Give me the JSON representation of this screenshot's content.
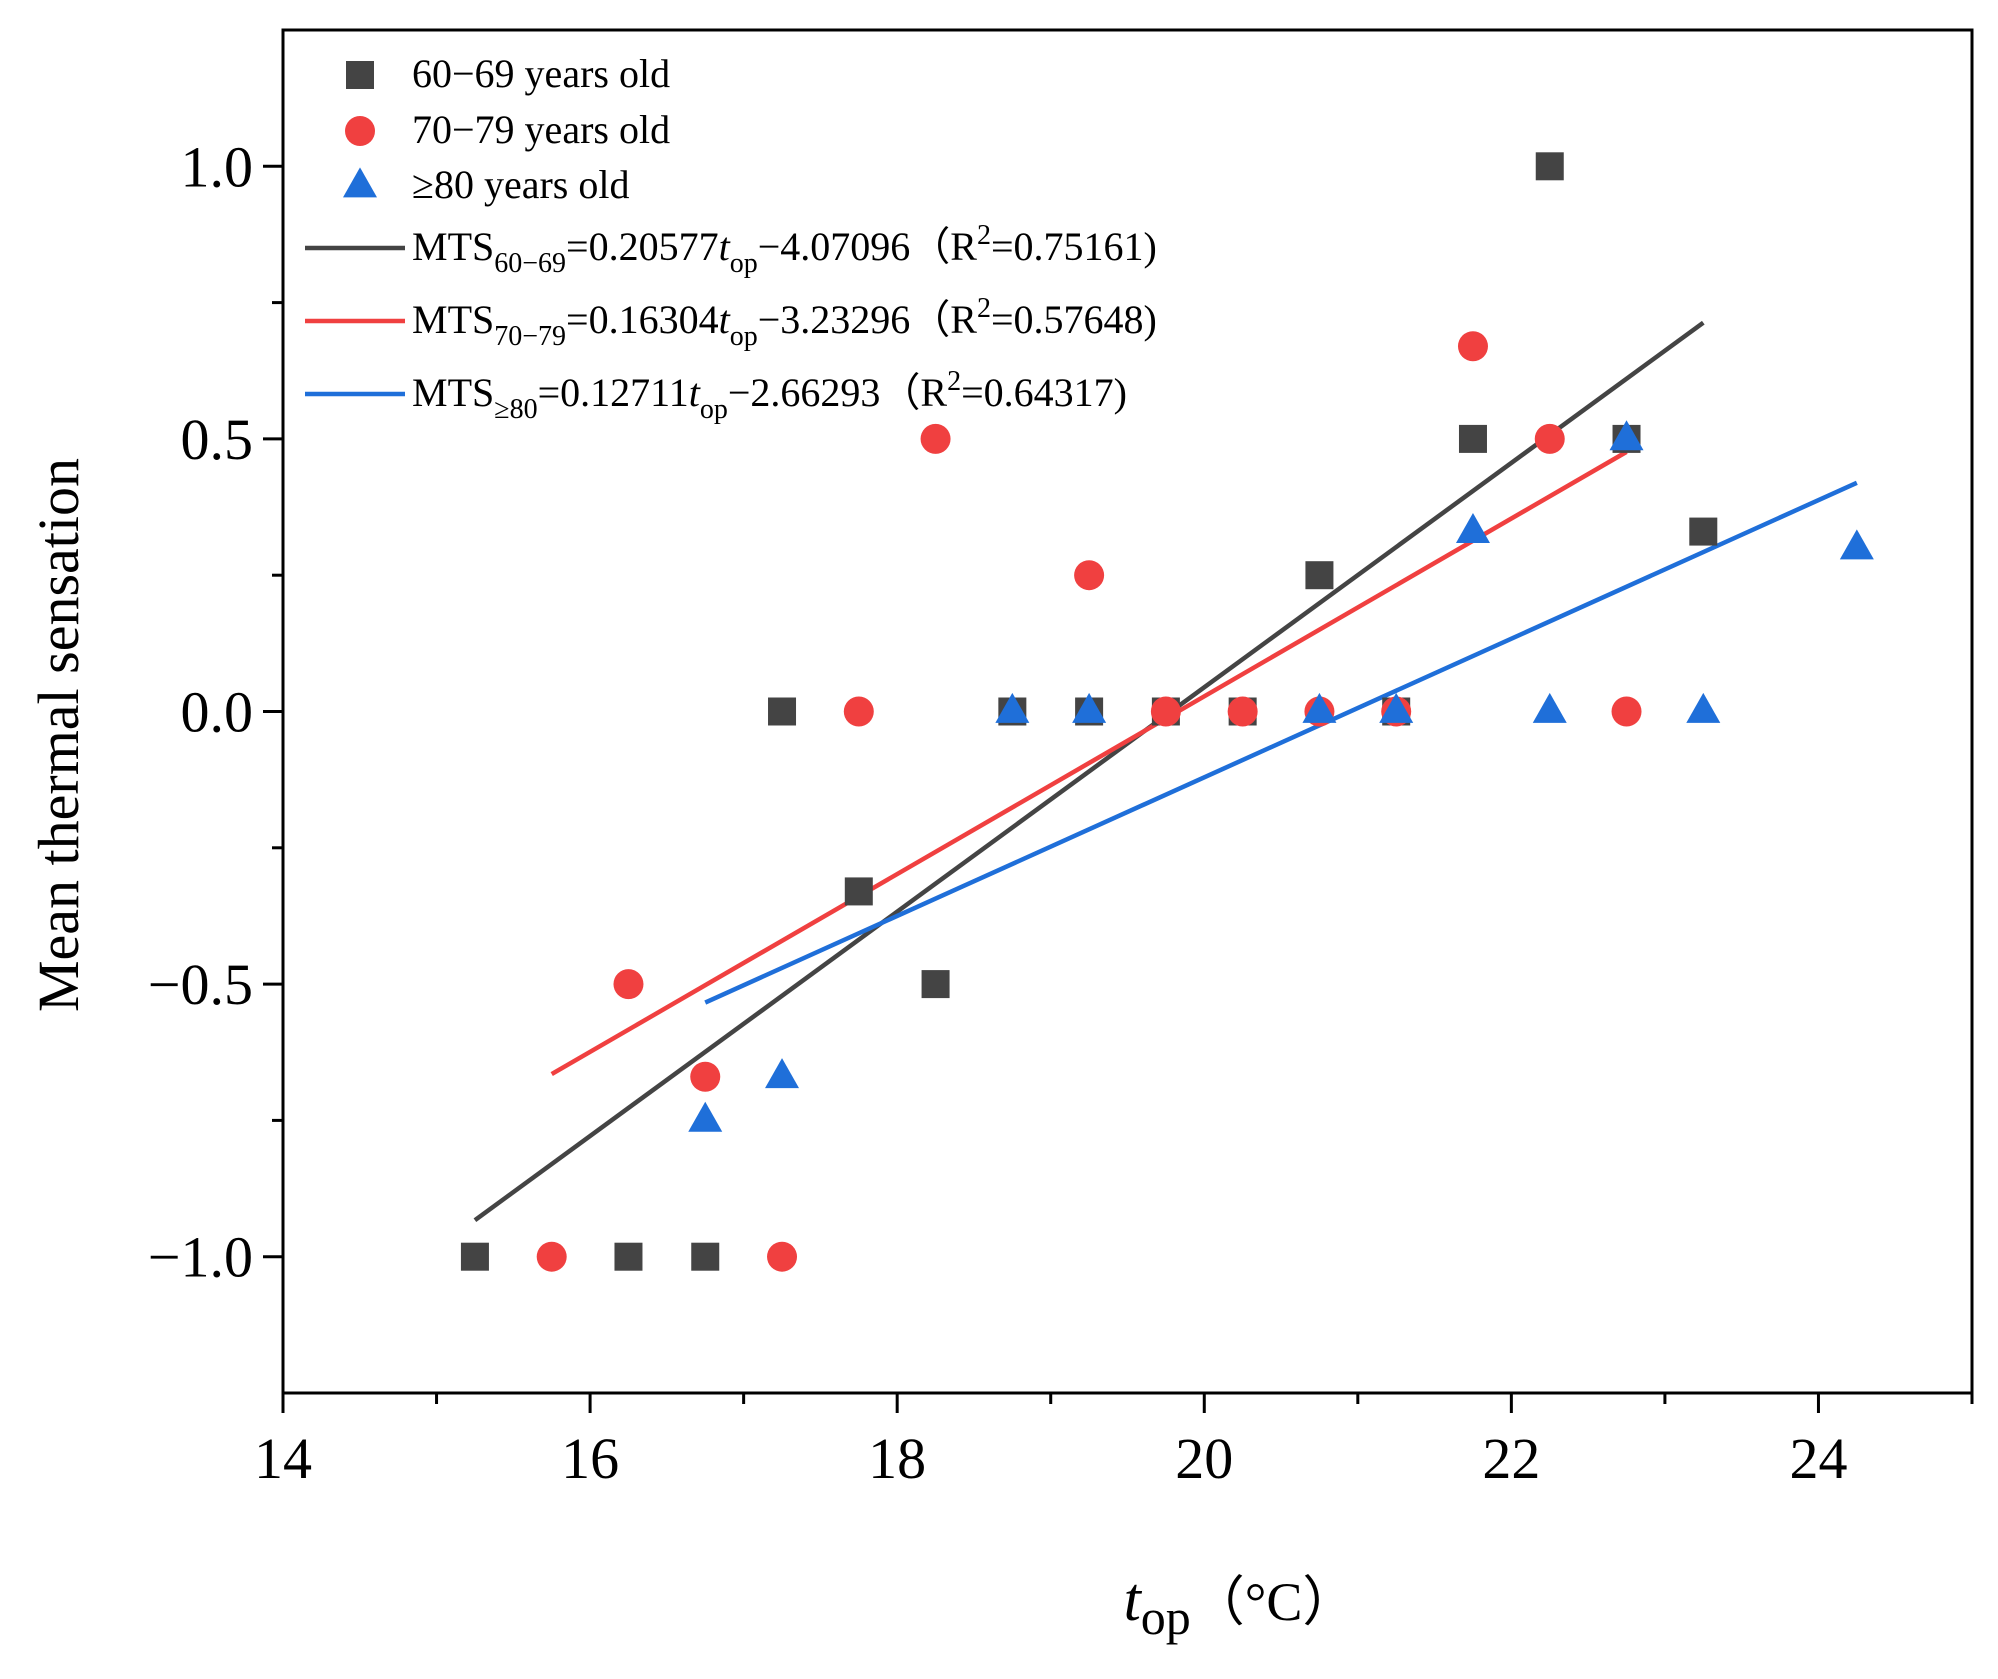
{
  "chart_data": {
    "type": "scatter",
    "title": "",
    "xlabel": {
      "main": "t",
      "sub": "op",
      "unit": "（°C）"
    },
    "ylabel": "Mean thermal sensation",
    "xlim": [
      14,
      25
    ],
    "ylim": [
      -1.25,
      1.25
    ],
    "xticks": [
      14,
      16,
      18,
      20,
      22,
      24
    ],
    "xtick_labels": [
      "14",
      "16",
      "18",
      "20",
      "22",
      "24"
    ],
    "yticks": [
      -1.0,
      -0.5,
      0.0,
      0.5,
      1.0
    ],
    "ytick_labels": [
      "−1.0",
      "−0.5",
      "0.0",
      "0.5",
      "1.0"
    ],
    "series": [
      {
        "name": "60−69 years old",
        "marker": "square",
        "color": "#444444",
        "points": [
          [
            15.25,
            -1.0
          ],
          [
            16.25,
            -1.0
          ],
          [
            16.75,
            -1.0
          ],
          [
            17.25,
            0.0
          ],
          [
            17.75,
            -0.33
          ],
          [
            18.25,
            -0.5
          ],
          [
            18.75,
            0.0
          ],
          [
            19.25,
            0.0
          ],
          [
            19.75,
            0.0
          ],
          [
            20.25,
            0.0
          ],
          [
            20.75,
            0.25
          ],
          [
            21.25,
            0.0
          ],
          [
            21.75,
            0.5
          ],
          [
            22.25,
            1.0
          ],
          [
            22.75,
            0.5
          ],
          [
            23.25,
            0.33
          ]
        ]
      },
      {
        "name": "70−79 years old",
        "marker": "circle",
        "color": "#f04040",
        "points": [
          [
            15.75,
            -1.0
          ],
          [
            16.25,
            -0.5
          ],
          [
            16.75,
            -0.67
          ],
          [
            17.25,
            -1.0
          ],
          [
            17.75,
            0.0
          ],
          [
            18.25,
            0.5
          ],
          [
            19.25,
            0.25
          ],
          [
            19.75,
            0.0
          ],
          [
            20.25,
            0.0
          ],
          [
            20.75,
            0.0
          ],
          [
            21.25,
            0.0
          ],
          [
            21.75,
            0.67
          ],
          [
            22.25,
            0.5
          ],
          [
            22.75,
            0.0
          ]
        ]
      },
      {
        "name": "≥80 years old",
        "marker": "triangle",
        "color": "#1f6fd9",
        "points": [
          [
            16.75,
            -0.75
          ],
          [
            17.25,
            -0.67
          ],
          [
            18.75,
            0.0
          ],
          [
            19.25,
            0.0
          ],
          [
            20.75,
            0.0
          ],
          [
            21.25,
            0.0
          ],
          [
            21.75,
            0.33
          ],
          [
            22.25,
            0.0
          ],
          [
            22.75,
            0.5
          ],
          [
            23.25,
            0.0
          ],
          [
            24.25,
            0.3
          ]
        ]
      }
    ],
    "fits": [
      {
        "name": "MTS60−69 fit",
        "color": "#444444",
        "slope": 0.20577,
        "intercept": -4.07096,
        "x_range": [
          15.25,
          23.25
        ],
        "label": {
          "lhs": "MTS",
          "sub": "60−69",
          "eq": "=0.20577",
          "var": "t",
          "var_sub": "op",
          "rest": "−4.07096（R",
          "sup": "2",
          "end": "=0.75161)"
        }
      },
      {
        "name": "MTS70−79 fit",
        "color": "#f04040",
        "slope": 0.16304,
        "intercept": -3.23296,
        "x_range": [
          15.75,
          22.75
        ],
        "label": {
          "lhs": "MTS",
          "sub": "70−79",
          "eq": "=0.16304",
          "var": "t",
          "var_sub": "op",
          "rest": "−3.23296（R",
          "sup": "2",
          "end": "=0.57648)"
        }
      },
      {
        "name": "MTS≥80 fit",
        "color": "#1f6fd9",
        "slope": 0.12711,
        "intercept": -2.66293,
        "x_range": [
          16.75,
          24.25
        ],
        "label": {
          "lhs": "MTS",
          "sub": "≥80",
          "eq": "=0.12711",
          "var": "t",
          "var_sub": "op",
          "rest": "−2.66293（R",
          "sup": "2",
          "end": "=0.64317)"
        }
      }
    ],
    "legend_position": "top-left",
    "grid": false
  }
}
